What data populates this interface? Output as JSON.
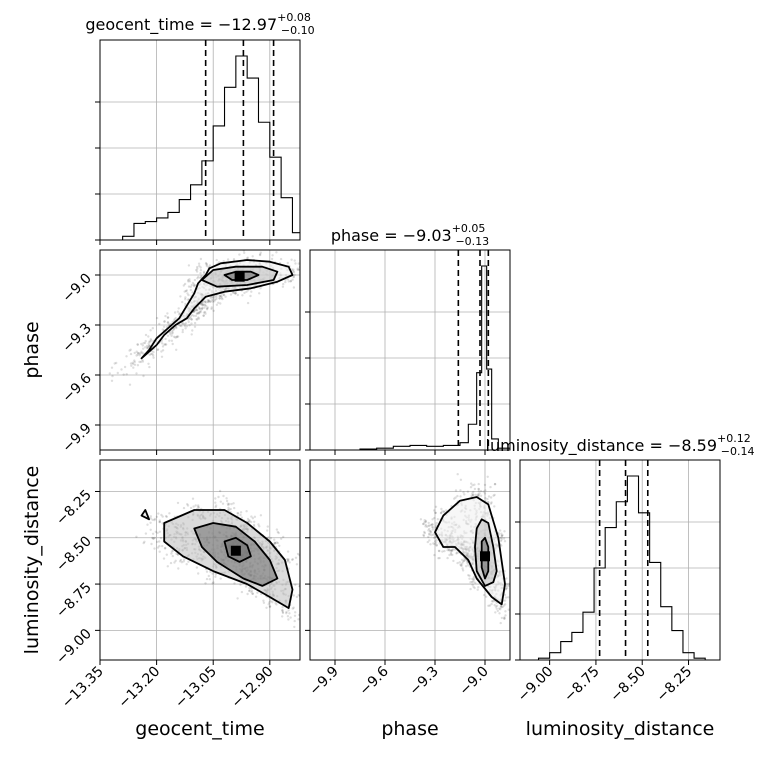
{
  "chart_data": {
    "type": "corner",
    "parameters": [
      "geocent_time",
      "phase",
      "luminosity_distance"
    ],
    "titles": {
      "geocent_time": {
        "prefix": "geocent_time = ",
        "value": "−12.97",
        "plus": "+0.08",
        "minus": "−0.10"
      },
      "phase": {
        "prefix": "phase = ",
        "value": "−9.03",
        "plus": "+0.05",
        "minus": "−0.13"
      },
      "luminosity_distance": {
        "prefix": "luminosity_distance = ",
        "value": "−8.59",
        "plus": "+0.12",
        "minus": "−0.14"
      }
    },
    "axis_labels": {
      "x": [
        "geocent_time",
        "phase",
        "luminosity_distance"
      ],
      "y": [
        "phase",
        "luminosity_distance"
      ]
    },
    "ranges": {
      "geocent_time": [
        -13.35,
        -12.82
      ],
      "phase": [
        -10.05,
        -8.85
      ],
      "luminosity_distance": [
        -9.16,
        -8.08
      ]
    },
    "ticks": {
      "geocent_time": [
        -13.35,
        -13.2,
        -13.05,
        -12.9
      ],
      "phase": [
        -9.9,
        -9.6,
        -9.3,
        -9.0
      ],
      "luminosity_distance": [
        -9.0,
        -8.75,
        -8.5,
        -8.25
      ]
    },
    "tick_labels": {
      "geocent_time": [
        "−13.35",
        "−13.20",
        "−13.05",
        "−12.90"
      ],
      "phase": [
        "−9.9",
        "−9.6",
        "−9.3",
        "−9.0"
      ],
      "luminosity_distance": [
        "−9.00",
        "−8.75",
        "−8.50",
        "−8.25"
      ]
    },
    "quantiles": {
      "geocent_time": [
        -13.07,
        -12.97,
        -12.89
      ],
      "phase": [
        -9.16,
        -9.03,
        -8.98
      ],
      "luminosity_distance": [
        -8.73,
        -8.59,
        -8.47
      ]
    },
    "histograms": {
      "geocent_time": {
        "edges": [
          -13.35,
          -13.32,
          -13.29,
          -13.26,
          -13.23,
          -13.2,
          -13.17,
          -13.14,
          -13.11,
          -13.08,
          -13.05,
          -13.02,
          -12.99,
          -12.96,
          -12.93,
          -12.9,
          -12.87,
          -12.84,
          -12.82
        ],
        "counts": [
          0,
          0,
          2,
          9,
          10,
          12,
          15,
          22,
          30,
          43,
          62,
          83,
          100,
          88,
          64,
          45,
          23,
          4
        ]
      },
      "phase": {
        "edges": [
          -10.05,
          -9.95,
          -9.85,
          -9.75,
          -9.65,
          -9.55,
          -9.45,
          -9.35,
          -9.25,
          -9.15,
          -9.1,
          -9.05,
          -9.02,
          -8.99,
          -8.96,
          -8.92,
          -8.85
        ],
        "counts": [
          0,
          0,
          0,
          0.5,
          1,
          2,
          2.5,
          2,
          2.5,
          4,
          14,
          42,
          100,
          44,
          6,
          1
        ]
      },
      "luminosity_distance": {
        "edges": [
          -9.16,
          -9.06,
          -9.0,
          -8.94,
          -8.88,
          -8.82,
          -8.76,
          -8.7,
          -8.64,
          -8.58,
          -8.52,
          -8.46,
          -8.4,
          -8.34,
          -8.28,
          -8.22,
          -8.16,
          -8.08
        ],
        "counts": [
          0,
          1,
          4,
          10,
          15,
          26,
          50,
          72,
          86,
          100,
          80,
          53,
          29,
          16,
          4,
          1,
          0
        ]
      }
    },
    "scatter_2d": {
      "geocent_time_phase": {
        "center": [
          -12.98,
          -9.01
        ],
        "contours": [
          [
            [
              -13.02,
              -9.0
            ],
            [
              -12.99,
              -8.98
            ],
            [
              -12.95,
              -8.98
            ],
            [
              -12.93,
              -9.0
            ],
            [
              -12.96,
              -9.03
            ],
            [
              -13.0,
              -9.03
            ],
            [
              -13.02,
              -9.0
            ]
          ],
          [
            [
              -13.08,
              -9.03
            ],
            [
              -13.05,
              -8.97
            ],
            [
              -12.99,
              -8.95
            ],
            [
              -12.92,
              -8.95
            ],
            [
              -12.88,
              -8.98
            ],
            [
              -12.89,
              -9.03
            ],
            [
              -12.96,
              -9.06
            ],
            [
              -13.04,
              -9.07
            ],
            [
              -13.08,
              -9.03
            ]
          ],
          [
            [
              -13.22,
              -9.45
            ],
            [
              -13.2,
              -9.38
            ],
            [
              -13.16,
              -9.3
            ],
            [
              -13.14,
              -9.26
            ],
            [
              -13.1,
              -9.11
            ],
            [
              -13.09,
              -9.05
            ],
            [
              -13.07,
              -9.0
            ],
            [
              -13.06,
              -8.96
            ],
            [
              -13.03,
              -8.93
            ],
            [
              -12.96,
              -8.91
            ],
            [
              -12.9,
              -8.92
            ],
            [
              -12.85,
              -8.95
            ],
            [
              -12.84,
              -9.0
            ],
            [
              -12.88,
              -9.04
            ],
            [
              -12.95,
              -9.08
            ],
            [
              -13.02,
              -9.1
            ],
            [
              -13.07,
              -9.13
            ],
            [
              -13.1,
              -9.2
            ],
            [
              -13.12,
              -9.26
            ],
            [
              -13.15,
              -9.3
            ],
            [
              -13.18,
              -9.36
            ],
            [
              -13.2,
              -9.42
            ],
            [
              -13.24,
              -9.5
            ],
            [
              -13.22,
              -9.45
            ]
          ]
        ]
      },
      "geocent_time_luminosity_distance": {
        "center": [
          -12.99,
          -8.57
        ],
        "contours": [
          [
            [
              -13.02,
              -8.52
            ],
            [
              -12.99,
              -8.5
            ],
            [
              -12.96,
              -8.54
            ],
            [
              -12.95,
              -8.6
            ],
            [
              -12.98,
              -8.63
            ],
            [
              -13.01,
              -8.6
            ],
            [
              -13.02,
              -8.52
            ]
          ],
          [
            [
              -13.1,
              -8.45
            ],
            [
              -13.05,
              -8.42
            ],
            [
              -12.99,
              -8.44
            ],
            [
              -12.94,
              -8.52
            ],
            [
              -12.9,
              -8.62
            ],
            [
              -12.88,
              -8.72
            ],
            [
              -12.92,
              -8.76
            ],
            [
              -12.97,
              -8.72
            ],
            [
              -13.04,
              -8.63
            ],
            [
              -13.08,
              -8.55
            ],
            [
              -13.1,
              -8.45
            ]
          ],
          [
            [
              -13.18,
              -8.42
            ],
            [
              -13.1,
              -8.35
            ],
            [
              -13.02,
              -8.35
            ],
            [
              -12.96,
              -8.42
            ],
            [
              -12.9,
              -8.52
            ],
            [
              -12.86,
              -8.62
            ],
            [
              -12.84,
              -8.78
            ],
            [
              -12.85,
              -8.88
            ],
            [
              -12.9,
              -8.82
            ],
            [
              -12.96,
              -8.75
            ],
            [
              -13.05,
              -8.68
            ],
            [
              -13.13,
              -8.6
            ],
            [
              -13.18,
              -8.52
            ],
            [
              -13.18,
              -8.42
            ]
          ],
          [
            [
              -13.24,
              -8.38
            ],
            [
              -13.23,
              -8.35
            ],
            [
              -13.22,
              -8.4
            ],
            [
              -13.24,
              -8.38
            ]
          ]
        ]
      },
      "phase_luminosity_distance": {
        "center": [
          -9.0,
          -8.6
        ],
        "contours": [
          [
            [
              -9.02,
              -8.52
            ],
            [
              -9.0,
              -8.5
            ],
            [
              -8.98,
              -8.55
            ],
            [
              -8.98,
              -8.68
            ],
            [
              -9.0,
              -8.72
            ],
            [
              -9.02,
              -8.66
            ],
            [
              -9.02,
              -8.52
            ]
          ],
          [
            [
              -9.05,
              -8.45
            ],
            [
              -9.02,
              -8.4
            ],
            [
              -8.98,
              -8.42
            ],
            [
              -8.95,
              -8.55
            ],
            [
              -8.93,
              -8.68
            ],
            [
              -8.95,
              -8.74
            ],
            [
              -9.0,
              -8.76
            ],
            [
              -9.05,
              -8.68
            ],
            [
              -9.06,
              -8.55
            ],
            [
              -9.05,
              -8.45
            ]
          ],
          [
            [
              -9.3,
              -8.47
            ],
            [
              -9.25,
              -8.38
            ],
            [
              -9.15,
              -8.3
            ],
            [
              -9.05,
              -8.28
            ],
            [
              -8.98,
              -8.32
            ],
            [
              -8.92,
              -8.5
            ],
            [
              -8.88,
              -8.75
            ],
            [
              -8.9,
              -8.86
            ],
            [
              -8.96,
              -8.82
            ],
            [
              -9.05,
              -8.72
            ],
            [
              -9.1,
              -8.62
            ],
            [
              -9.18,
              -8.55
            ],
            [
              -9.25,
              -8.55
            ],
            [
              -9.3,
              -8.47
            ]
          ]
        ]
      }
    },
    "contour_color": "#000000",
    "point_color": "#000000",
    "grid": true
  }
}
